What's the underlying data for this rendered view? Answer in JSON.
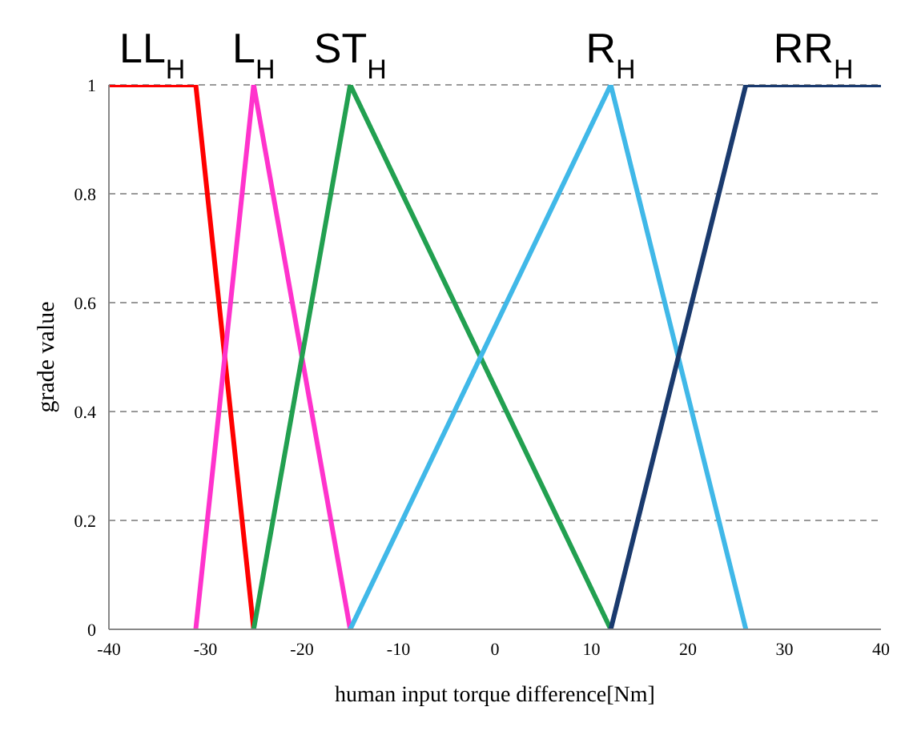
{
  "chart_data": {
    "type": "line",
    "xlabel": "human input torque difference[Nm]",
    "ylabel": "grade value",
    "xlim": [
      -40,
      40
    ],
    "xticks": [
      -40,
      -30,
      -20,
      -10,
      0,
      10,
      20,
      30,
      40
    ],
    "ylim": [
      0,
      1
    ],
    "yticks": [
      0,
      0.2,
      0.4,
      0.6,
      0.8,
      1
    ],
    "grid": "y",
    "marker": "none",
    "line_style": "solid",
    "legend": false,
    "series": [
      {
        "name": "LL$_{H}$",
        "color": "#ff0000",
        "x": [
          -40,
          -31,
          -25
        ],
        "values": [
          1,
          1,
          0
        ]
      },
      {
        "name": "L$_{H}$",
        "color": "#ff33cc",
        "x": [
          -31,
          -25,
          -15
        ],
        "values": [
          0,
          1,
          0
        ]
      },
      {
        "name": "ST$_{H}$",
        "color": "#22a050",
        "x": [
          -25,
          -15,
          12
        ],
        "values": [
          0,
          1,
          0
        ]
      },
      {
        "name": "R$_{H}$",
        "color": "#40b8e8",
        "x": [
          -15,
          12,
          26
        ],
        "values": [
          0,
          1,
          0
        ]
      },
      {
        "name": "RR$_{H}$",
        "color": "#1a3a6e",
        "x": [
          12,
          26,
          40
        ],
        "values": [
          0,
          1,
          1
        ]
      }
    ]
  }
}
